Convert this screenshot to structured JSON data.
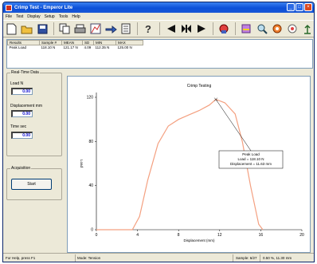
{
  "window": {
    "title": "Crimp Test - Emperor Lite"
  },
  "menu": [
    "File",
    "Test",
    "Display",
    "Setup",
    "Tools",
    "Help"
  ],
  "toolbar": {
    "icons": [
      "new-file-icon",
      "open-folder-icon",
      "save-icon",
      "copy-icon",
      "print-icon",
      "graph-icon",
      "export-icon",
      "report-icon",
      "help-icon",
      "arrow-left-icon",
      "stop-icon",
      "arrow-right-icon",
      "test-icon",
      "settings-icon",
      "zoom-icon",
      "record-icon",
      "target-icon",
      "calibrate-icon"
    ]
  },
  "results": {
    "headers": [
      "Results",
      "Sample #",
      "MEAN",
      "SD",
      "MIN",
      "MAX"
    ],
    "row": [
      "Peak Load",
      "118.10 N",
      "121.17 N",
      "4.09",
      "112.35 N",
      "125.00 N"
    ]
  },
  "realtime": {
    "title": "Real-Time Data",
    "load_label": "Load    N",
    "load_value": "0.00",
    "disp_label": "Displacement  mm",
    "disp_value": "0.00",
    "time_label": "Time     sec",
    "time_value": "0.00"
  },
  "acquisition": {
    "label": "Acquisition",
    "start_label": "Start"
  },
  "chart_data": {
    "type": "line",
    "title": "Crimp Testing",
    "xlabel": "Displacement (mm)",
    "ylabel": "Load",
    "xlim": [
      0,
      20
    ],
    "ylim": [
      0,
      120
    ],
    "xticks": [
      "0",
      "4",
      "8",
      "12",
      "16",
      "20"
    ],
    "yticks": [
      "0",
      "40",
      "80",
      "120"
    ],
    "grid": false,
    "series": [
      {
        "color": "#f4a080",
        "x": [
          0,
          2,
          3.5,
          4.2,
          5,
          6,
          7,
          8,
          9,
          10,
          11,
          11.63,
          12.5,
          13.5,
          14.2,
          15,
          15.8,
          16.2
        ],
        "y": [
          0,
          0,
          0,
          12,
          45,
          78,
          94,
          100,
          104,
          108,
          113,
          118.1,
          115,
          105,
          80,
          40,
          5,
          0
        ]
      }
    ],
    "annotation": {
      "x": 11.63,
      "y": 118.1,
      "lines": [
        "Peak Load",
        "Load = 118.10 N",
        "Displacement = 11.63 mm"
      ]
    }
  },
  "status": {
    "help": "For Help, press F1",
    "mode": "Mode: Tension",
    "sample": "Sample: 6/27",
    "pos": "0.50 %, 11.30 mm"
  }
}
